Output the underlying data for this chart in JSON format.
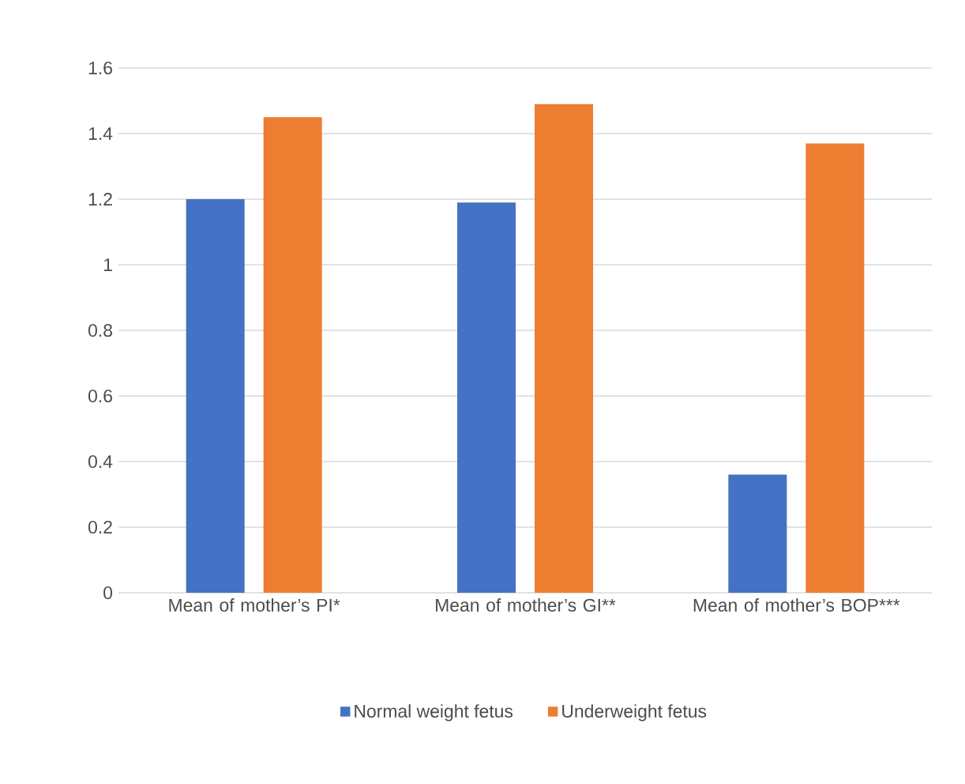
{
  "chart_data": {
    "type": "bar",
    "categories": [
      "Mean of mother’s PI*",
      "Mean of mother’s GI**",
      "Mean of mother’s BOP***"
    ],
    "series": [
      {
        "name": "Normal weight fetus",
        "color": "#4472c4",
        "values": [
          1.2,
          1.19,
          0.36
        ]
      },
      {
        "name": "Underweight fetus",
        "color": "#ed7d31",
        "values": [
          1.45,
          1.49,
          1.37
        ]
      }
    ],
    "ylim": [
      0,
      1.6
    ],
    "yticks": [
      0,
      0.2,
      0.4,
      0.6,
      0.8,
      1,
      1.2,
      1.4,
      1.6
    ],
    "grid": "y",
    "legend": "bottom"
  }
}
